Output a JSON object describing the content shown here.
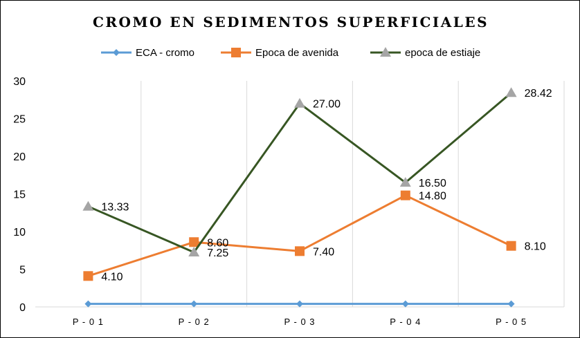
{
  "chart_data": {
    "type": "line",
    "title": "CROMO EN SEDIMENTOS SUPERFICIALES",
    "categories": [
      "P-01",
      "P-02",
      "P-03",
      "P-04",
      "P-05"
    ],
    "category_tick_labels": [
      "P - 0 1",
      "P - 0 2",
      "P - 0 3",
      "P - 0 4",
      "P - 0 5"
    ],
    "ylim": [
      0,
      30
    ],
    "yticks": [
      0,
      5,
      10,
      15,
      20,
      25,
      30
    ],
    "grid": "vertical",
    "legend": "top",
    "series": [
      {
        "name": "ECA - cromo",
        "values": [
          0.4,
          0.4,
          0.4,
          0.4,
          0.4
        ],
        "color": "#5B9BD5",
        "marker": "diamond",
        "labels": [
          "",
          "",
          "",
          "",
          ""
        ]
      },
      {
        "name": "Epoca de avenida",
        "values": [
          4.1,
          8.6,
          7.4,
          14.8,
          8.1
        ],
        "color": "#ED7D31",
        "marker": "square",
        "labels": [
          "4.10",
          "8.60",
          "7.40",
          "14.80",
          "8.10"
        ]
      },
      {
        "name": "epoca de estiaje",
        "values": [
          13.33,
          7.25,
          27.0,
          16.5,
          28.42
        ],
        "color": "#375623",
        "marker": "triangle",
        "marker_color": "#A5A5A5",
        "labels": [
          "13.33",
          "7.25",
          "27.00",
          "16.50",
          "28.42"
        ]
      }
    ]
  }
}
